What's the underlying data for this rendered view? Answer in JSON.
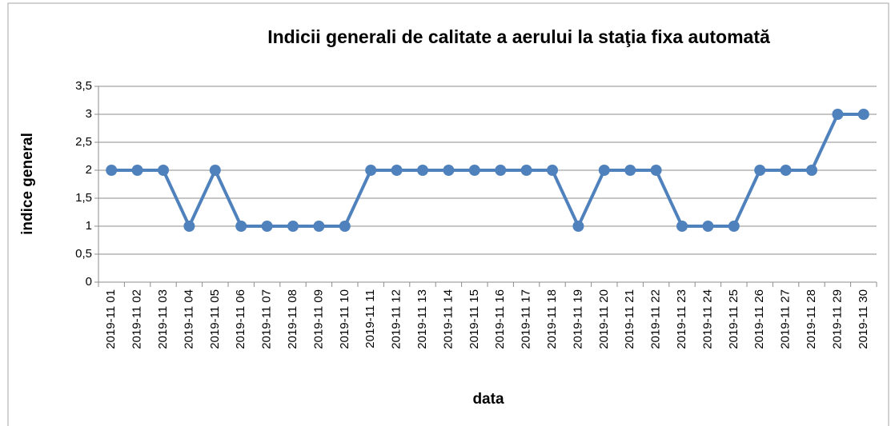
{
  "chart_data": {
    "type": "line",
    "title": "Indicii generali de calitate a aerului la staţia fixa automată",
    "x_label": "data",
    "y_label": "indice general",
    "categories": [
      "2019-11 01",
      "2019-11 02",
      "2019-11 03",
      "2019-11 04",
      "2019-11 05",
      "2019-11 06",
      "2019-11 07",
      "2019-11 08",
      "2019-11 09",
      "2019-11 10",
      "2019-11 11",
      "2019-11 12",
      "2019-11 13",
      "2019-11 14",
      "2019-11 15",
      "2019-11 16",
      "2019-11 17",
      "2019-11 18",
      "2019-11 19",
      "2019-11 20",
      "2019-11 21",
      "2019-11 22",
      "2019-11 23",
      "2019-11 24",
      "2019-11 25",
      "2019-11 26",
      "2019-11 27",
      "2019-11 28",
      "2019-11 29",
      "2019-11 30"
    ],
    "values": [
      2,
      2,
      2,
      1,
      2,
      1,
      1,
      1,
      1,
      1,
      2,
      2,
      2,
      2,
      2,
      2,
      2,
      2,
      1,
      2,
      2,
      2,
      1,
      1,
      1,
      2,
      2,
      2,
      3,
      3
    ],
    "color": "#4f81bd",
    "ylim": [
      0,
      3.5
    ],
    "yticks": [
      0,
      {
        "value": 0.5,
        "label": "0,5"
      },
      1,
      {
        "value": 1.5,
        "label": "1,5"
      },
      2,
      {
        "value": 2.5,
        "label": "2,5"
      },
      3,
      {
        "value": 3.5,
        "label": "3,5"
      }
    ],
    "grid": true
  }
}
